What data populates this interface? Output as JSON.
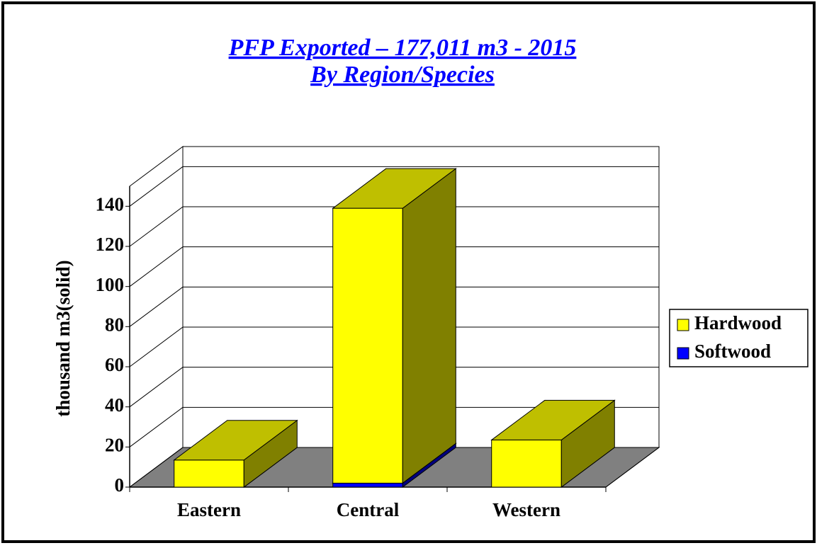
{
  "chart_data": {
    "type": "bar3d_stacked",
    "title": "PFP Exported – 177,011 m3 - 2015",
    "subtitle": "By Region/Species",
    "y_label": "thousand m3(solid)",
    "categories": [
      "Eastern",
      "Central",
      "Western"
    ],
    "series": [
      {
        "name": "Softwood",
        "color": "#0000ff",
        "values": [
          0,
          2,
          0
        ]
      },
      {
        "name": "Hardwood",
        "color": "#ffff00",
        "values": [
          13.5,
          137,
          23.5
        ]
      }
    ],
    "legend_order": [
      "Hardwood",
      "Softwood"
    ],
    "ylim": [
      0,
      150
    ],
    "yticks": [
      0,
      20,
      40,
      60,
      80,
      100,
      120,
      140
    ],
    "grid": true,
    "legend": "right"
  }
}
